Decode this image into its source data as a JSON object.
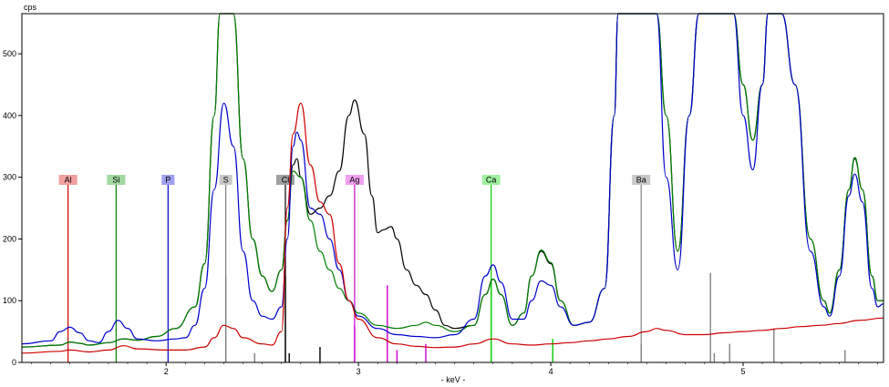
{
  "chart_data": {
    "type": "line",
    "ylabel": "cps",
    "xlabel": "- keV -",
    "xlim": [
      1.25,
      5.73
    ],
    "ylim": [
      0,
      565
    ],
    "x_ticks": [
      2,
      3,
      4,
      5
    ],
    "y_ticks": [
      0,
      100,
      200,
      300,
      400,
      500
    ],
    "grid": false,
    "series": [
      {
        "color": "#000000",
        "points": [
          [
            1.25,
            25
          ],
          [
            1.45,
            28
          ],
          [
            1.5,
            33
          ],
          [
            1.55,
            31
          ],
          [
            1.6,
            28
          ],
          [
            1.7,
            32
          ],
          [
            1.78,
            38
          ],
          [
            1.85,
            36
          ],
          [
            1.95,
            42
          ],
          [
            2.05,
            55
          ],
          [
            2.15,
            90
          ],
          [
            2.2,
            160
          ],
          [
            2.25,
            400
          ],
          [
            2.28,
            565
          ],
          [
            2.35,
            565
          ],
          [
            2.4,
            330
          ],
          [
            2.45,
            200
          ],
          [
            2.5,
            140
          ],
          [
            2.55,
            115
          ],
          [
            2.6,
            150
          ],
          [
            2.63,
            230
          ],
          [
            2.66,
            320
          ],
          [
            2.68,
            330
          ],
          [
            2.7,
            300
          ],
          [
            2.75,
            240
          ],
          [
            2.8,
            250
          ],
          [
            2.85,
            270
          ],
          [
            2.9,
            310
          ],
          [
            2.95,
            400
          ],
          [
            2.98,
            425
          ],
          [
            3.03,
            370
          ],
          [
            3.07,
            270
          ],
          [
            3.1,
            210
          ],
          [
            3.13,
            215
          ],
          [
            3.17,
            220
          ],
          [
            3.2,
            200
          ],
          [
            3.25,
            150
          ],
          [
            3.3,
            125
          ],
          [
            3.35,
            110
          ],
          [
            3.4,
            85
          ],
          [
            3.45,
            60
          ],
          [
            3.5,
            55
          ],
          [
            3.6,
            60
          ],
          [
            3.66,
            110
          ],
          [
            3.7,
            135
          ],
          [
            3.74,
            110
          ],
          [
            3.8,
            60
          ],
          [
            3.86,
            80
          ],
          [
            3.9,
            140
          ],
          [
            3.95,
            180
          ],
          [
            4.0,
            160
          ],
          [
            4.05,
            100
          ],
          [
            4.12,
            60
          ],
          [
            4.2,
            65
          ],
          [
            4.28,
            120
          ],
          [
            4.33,
            400
          ],
          [
            4.35,
            565
          ],
          [
            4.55,
            565
          ],
          [
            4.6,
            400
          ],
          [
            4.66,
            180
          ],
          [
            4.72,
            400
          ],
          [
            4.77,
            565
          ],
          [
            4.95,
            565
          ],
          [
            5.0,
            450
          ],
          [
            5.05,
            360
          ],
          [
            5.1,
            450
          ],
          [
            5.13,
            565
          ],
          [
            5.2,
            565
          ],
          [
            5.27,
            450
          ],
          [
            5.35,
            200
          ],
          [
            5.42,
            100
          ],
          [
            5.45,
            80
          ],
          [
            5.5,
            150
          ],
          [
            5.55,
            280
          ],
          [
            5.58,
            330
          ],
          [
            5.62,
            280
          ],
          [
            5.67,
            140
          ],
          [
            5.7,
            100
          ],
          [
            5.73,
            100
          ]
        ]
      },
      {
        "color": "#008000",
        "points": [
          [
            1.25,
            25
          ],
          [
            1.45,
            28
          ],
          [
            1.5,
            33
          ],
          [
            1.55,
            31
          ],
          [
            1.6,
            28
          ],
          [
            1.7,
            32
          ],
          [
            1.78,
            38
          ],
          [
            1.85,
            36
          ],
          [
            1.95,
            42
          ],
          [
            2.05,
            55
          ],
          [
            2.15,
            90
          ],
          [
            2.2,
            160
          ],
          [
            2.25,
            400
          ],
          [
            2.28,
            565
          ],
          [
            2.35,
            565
          ],
          [
            2.4,
            330
          ],
          [
            2.45,
            200
          ],
          [
            2.5,
            140
          ],
          [
            2.55,
            115
          ],
          [
            2.6,
            150
          ],
          [
            2.63,
            230
          ],
          [
            2.66,
            310
          ],
          [
            2.7,
            300
          ],
          [
            2.75,
            230
          ],
          [
            2.8,
            180
          ],
          [
            2.85,
            150
          ],
          [
            2.9,
            120
          ],
          [
            2.95,
            100
          ],
          [
            3.0,
            80
          ],
          [
            3.1,
            60
          ],
          [
            3.2,
            55
          ],
          [
            3.3,
            60
          ],
          [
            3.35,
            65
          ],
          [
            3.4,
            60
          ],
          [
            3.5,
            50
          ],
          [
            3.6,
            60
          ],
          [
            3.66,
            110
          ],
          [
            3.7,
            135
          ],
          [
            3.74,
            110
          ],
          [
            3.8,
            60
          ],
          [
            3.86,
            80
          ],
          [
            3.9,
            140
          ],
          [
            3.95,
            182
          ],
          [
            4.0,
            162
          ],
          [
            4.05,
            100
          ],
          [
            4.12,
            60
          ],
          [
            4.2,
            65
          ],
          [
            4.28,
            120
          ],
          [
            4.33,
            400
          ],
          [
            4.35,
            565
          ],
          [
            4.55,
            565
          ],
          [
            4.6,
            400
          ],
          [
            4.66,
            180
          ],
          [
            4.72,
            400
          ],
          [
            4.77,
            565
          ],
          [
            4.95,
            565
          ],
          [
            5.0,
            450
          ],
          [
            5.05,
            360
          ],
          [
            5.1,
            450
          ],
          [
            5.13,
            565
          ],
          [
            5.2,
            565
          ],
          [
            5.27,
            450
          ],
          [
            5.35,
            200
          ],
          [
            5.42,
            100
          ],
          [
            5.45,
            80
          ],
          [
            5.5,
            150
          ],
          [
            5.55,
            280
          ],
          [
            5.58,
            332
          ],
          [
            5.62,
            280
          ],
          [
            5.67,
            140
          ],
          [
            5.7,
            100
          ],
          [
            5.73,
            100
          ]
        ]
      },
      {
        "color": "#0000cc",
        "points": [
          [
            1.25,
            30
          ],
          [
            1.4,
            35
          ],
          [
            1.45,
            50
          ],
          [
            1.5,
            57
          ],
          [
            1.55,
            48
          ],
          [
            1.6,
            35
          ],
          [
            1.65,
            32
          ],
          [
            1.7,
            50
          ],
          [
            1.75,
            68
          ],
          [
            1.8,
            55
          ],
          [
            1.85,
            38
          ],
          [
            1.95,
            35
          ],
          [
            2.05,
            38
          ],
          [
            2.1,
            40
          ],
          [
            2.15,
            60
          ],
          [
            2.2,
            120
          ],
          [
            2.25,
            280
          ],
          [
            2.3,
            420
          ],
          [
            2.35,
            350
          ],
          [
            2.4,
            180
          ],
          [
            2.45,
            100
          ],
          [
            2.5,
            75
          ],
          [
            2.55,
            70
          ],
          [
            2.6,
            90
          ],
          [
            2.63,
            200
          ],
          [
            2.66,
            350
          ],
          [
            2.68,
            373
          ],
          [
            2.7,
            360
          ],
          [
            2.75,
            250
          ],
          [
            2.8,
            240
          ],
          [
            2.85,
            200
          ],
          [
            2.9,
            150
          ],
          [
            2.95,
            100
          ],
          [
            3.0,
            75
          ],
          [
            3.1,
            55
          ],
          [
            3.2,
            45
          ],
          [
            3.3,
            42
          ],
          [
            3.4,
            40
          ],
          [
            3.5,
            45
          ],
          [
            3.6,
            70
          ],
          [
            3.66,
            140
          ],
          [
            3.7,
            158
          ],
          [
            3.74,
            130
          ],
          [
            3.8,
            70
          ],
          [
            3.86,
            70
          ],
          [
            3.9,
            100
          ],
          [
            3.95,
            132
          ],
          [
            4.0,
            125
          ],
          [
            4.05,
            90
          ],
          [
            4.12,
            60
          ],
          [
            4.2,
            65
          ],
          [
            4.28,
            120
          ],
          [
            4.33,
            400
          ],
          [
            4.35,
            565
          ],
          [
            4.55,
            565
          ],
          [
            4.6,
            300
          ],
          [
            4.66,
            150
          ],
          [
            4.72,
            400
          ],
          [
            4.77,
            565
          ],
          [
            4.95,
            565
          ],
          [
            5.0,
            400
          ],
          [
            5.05,
            312
          ],
          [
            5.1,
            450
          ],
          [
            5.13,
            565
          ],
          [
            5.2,
            565
          ],
          [
            5.27,
            450
          ],
          [
            5.35,
            180
          ],
          [
            5.42,
            90
          ],
          [
            5.45,
            75
          ],
          [
            5.5,
            140
          ],
          [
            5.55,
            270
          ],
          [
            5.58,
            305
          ],
          [
            5.62,
            260
          ],
          [
            5.67,
            120
          ],
          [
            5.7,
            90
          ],
          [
            5.73,
            95
          ]
        ]
      },
      {
        "color": "#cc0000",
        "points": [
          [
            1.25,
            15
          ],
          [
            1.45,
            18
          ],
          [
            1.5,
            20
          ],
          [
            1.6,
            17
          ],
          [
            1.7,
            20
          ],
          [
            1.78,
            27
          ],
          [
            1.85,
            22
          ],
          [
            2.0,
            20
          ],
          [
            2.1,
            20
          ],
          [
            2.2,
            25
          ],
          [
            2.25,
            40
          ],
          [
            2.3,
            60
          ],
          [
            2.35,
            55
          ],
          [
            2.4,
            40
          ],
          [
            2.5,
            30
          ],
          [
            2.55,
            28
          ],
          [
            2.6,
            50
          ],
          [
            2.63,
            250
          ],
          [
            2.66,
            370
          ],
          [
            2.7,
            420
          ],
          [
            2.75,
            320
          ],
          [
            2.8,
            260
          ],
          [
            2.85,
            240
          ],
          [
            2.9,
            160
          ],
          [
            2.95,
            100
          ],
          [
            3.0,
            70
          ],
          [
            3.1,
            40
          ],
          [
            3.2,
            30
          ],
          [
            3.3,
            26
          ],
          [
            3.4,
            24
          ],
          [
            3.5,
            25
          ],
          [
            3.6,
            30
          ],
          [
            3.7,
            38
          ],
          [
            3.8,
            30
          ],
          [
            3.9,
            28
          ],
          [
            4.0,
            30
          ],
          [
            4.1,
            32
          ],
          [
            4.2,
            35
          ],
          [
            4.3,
            38
          ],
          [
            4.4,
            42
          ],
          [
            4.5,
            50
          ],
          [
            4.55,
            55
          ],
          [
            4.6,
            52
          ],
          [
            4.7,
            45
          ],
          [
            4.8,
            45
          ],
          [
            4.9,
            48
          ],
          [
            5.0,
            50
          ],
          [
            5.1,
            52
          ],
          [
            5.2,
            55
          ],
          [
            5.3,
            58
          ],
          [
            5.4,
            60
          ],
          [
            5.5,
            63
          ],
          [
            5.6,
            68
          ],
          [
            5.73,
            72
          ]
        ]
      }
    ],
    "element_markers": [
      {
        "label": "Al",
        "x": 1.49,
        "color": "#cc0000",
        "label_bg": "#f2a0a0"
      },
      {
        "label": "Si",
        "x": 1.74,
        "color": "#008000",
        "label_bg": "#a0d8a0"
      },
      {
        "label": "P",
        "x": 2.01,
        "color": "#0000cc",
        "label_bg": "#a0a0f0"
      },
      {
        "label": "S",
        "x": 2.31,
        "color": "#808080",
        "label_bg": "#c8c8c8"
      },
      {
        "label": "Cl",
        "x": 2.62,
        "color": "#000000",
        "label_bg": "#a0a0a0"
      },
      {
        "label": "Ag",
        "x": 2.98,
        "color": "#cc00cc",
        "label_bg": "#f0a0f0"
      },
      {
        "label": "Ca",
        "x": 3.69,
        "color": "#00cc00",
        "label_bg": "#a0f0a0"
      },
      {
        "label": "Ba",
        "x": 4.47,
        "color": "#808080",
        "label_bg": "#c8c8c8"
      }
    ],
    "line_stubs": [
      {
        "x": 2.31,
        "y": 140,
        "color": "#808080"
      },
      {
        "x": 2.46,
        "y": 15,
        "color": "#808080"
      },
      {
        "x": 2.62,
        "y": 140,
        "color": "#000000"
      },
      {
        "x": 2.64,
        "y": 15,
        "color": "#000000"
      },
      {
        "x": 2.8,
        "y": 25,
        "color": "#000000"
      },
      {
        "x": 2.98,
        "y": 60,
        "color": "#cc00cc"
      },
      {
        "x": 3.15,
        "y": 125,
        "color": "#cc00cc"
      },
      {
        "x": 3.2,
        "y": 20,
        "color": "#cc00cc"
      },
      {
        "x": 3.35,
        "y": 30,
        "color": "#cc00cc"
      },
      {
        "x": 3.69,
        "y": 130,
        "color": "#00cc00"
      },
      {
        "x": 4.01,
        "y": 38,
        "color": "#00cc00"
      },
      {
        "x": 4.47,
        "y": 30,
        "color": "#808080"
      },
      {
        "x": 4.83,
        "y": 145,
        "color": "#808080"
      },
      {
        "x": 4.85,
        "y": 15,
        "color": "#808080"
      },
      {
        "x": 4.93,
        "y": 30,
        "color": "#808080"
      },
      {
        "x": 5.16,
        "y": 55,
        "color": "#808080"
      },
      {
        "x": 5.53,
        "y": 20,
        "color": "#808080"
      }
    ]
  }
}
